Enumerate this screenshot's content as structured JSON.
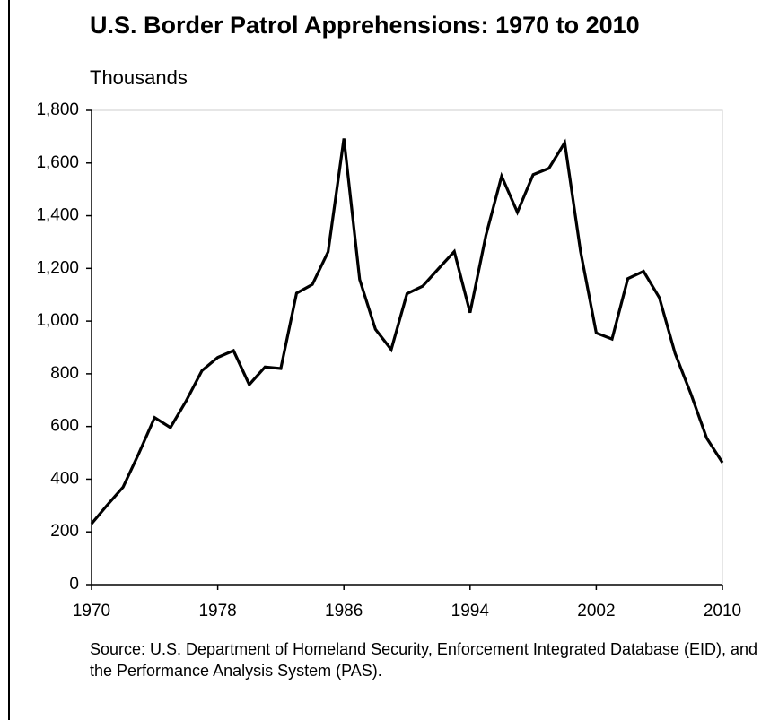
{
  "chart_data": {
    "type": "line",
    "title": "U.S. Border Patrol Apprehensions: 1970 to 2010",
    "y_label": "Thousands",
    "source": "Source: U.S. Department of Homeland Security, Enforcement Integrated Database (EID), and the Performance Analysis System (PAS).",
    "x": [
      1970,
      1971,
      1972,
      1973,
      1974,
      1975,
      1976,
      1977,
      1978,
      1979,
      1980,
      1981,
      1982,
      1983,
      1984,
      1985,
      1986,
      1987,
      1988,
      1989,
      1990,
      1991,
      1992,
      1993,
      1994,
      1995,
      1996,
      1997,
      1998,
      1999,
      2000,
      2001,
      2002,
      2003,
      2004,
      2005,
      2006,
      2007,
      2008,
      2009,
      2010
    ],
    "series": [
      {
        "name": "Apprehensions",
        "color": "#000000",
        "values": [
          231,
          302,
          370,
          498,
          634,
          596,
          697,
          812,
          862,
          888,
          759,
          826,
          820,
          1106,
          1139,
          1263,
          1693,
          1158,
          969,
          892,
          1104,
          1133,
          1199,
          1264,
          1032,
          1324,
          1550,
          1413,
          1556,
          1580,
          1677,
          1266,
          955,
          932,
          1161,
          1189,
          1089,
          877,
          724,
          556,
          463
        ]
      }
    ],
    "xlim": [
      1970,
      2010
    ],
    "xticks": [
      1970,
      1978,
      1986,
      1994,
      2002,
      2010
    ],
    "ylim": [
      0,
      1800
    ],
    "yticks": [
      0,
      200,
      400,
      600,
      800,
      {
        "value": 1000,
        "label": "1,000"
      },
      {
        "value": 1200,
        "label": "1,200"
      },
      {
        "value": 1400,
        "label": "1,400"
      },
      {
        "value": 1600,
        "label": "1,600"
      },
      {
        "value": 1800,
        "label": "1,800"
      }
    ]
  }
}
